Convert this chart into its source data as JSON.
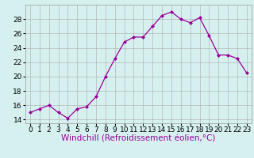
{
  "x": [
    0,
    1,
    2,
    3,
    4,
    5,
    6,
    7,
    8,
    9,
    10,
    11,
    12,
    13,
    14,
    15,
    16,
    17,
    18,
    19,
    20,
    21,
    22,
    23
  ],
  "y": [
    15.0,
    15.5,
    16.0,
    15.0,
    14.2,
    15.5,
    15.8,
    17.2,
    20.0,
    22.5,
    24.8,
    25.5,
    25.5,
    27.0,
    28.5,
    29.0,
    28.0,
    27.5,
    28.2,
    25.7,
    23.0,
    23.0,
    22.5,
    20.5
  ],
  "line_color": "#990099",
  "marker": "D",
  "marker_size": 2.0,
  "bg_color": "#d6f0f0",
  "grid_color": "#aaaaaa",
  "xlabel": "Windchill (Refroidissement éolien,°C)",
  "xlabel_color": "#990099",
  "xlabel_fontsize": 7.5,
  "tick_fontsize": 6.5,
  "yticks": [
    14,
    16,
    18,
    20,
    22,
    24,
    26,
    28
  ],
  "xtick_labels": [
    "0",
    "1",
    "2",
    "3",
    "4",
    "5",
    "6",
    "7",
    "8",
    "9",
    "10",
    "11",
    "12",
    "13",
    "14",
    "15",
    "16",
    "17",
    "18",
    "19",
    "20",
    "21",
    "22",
    "23"
  ],
  "ylim": [
    13.5,
    30.0
  ],
  "xlim": [
    -0.5,
    23.5
  ]
}
